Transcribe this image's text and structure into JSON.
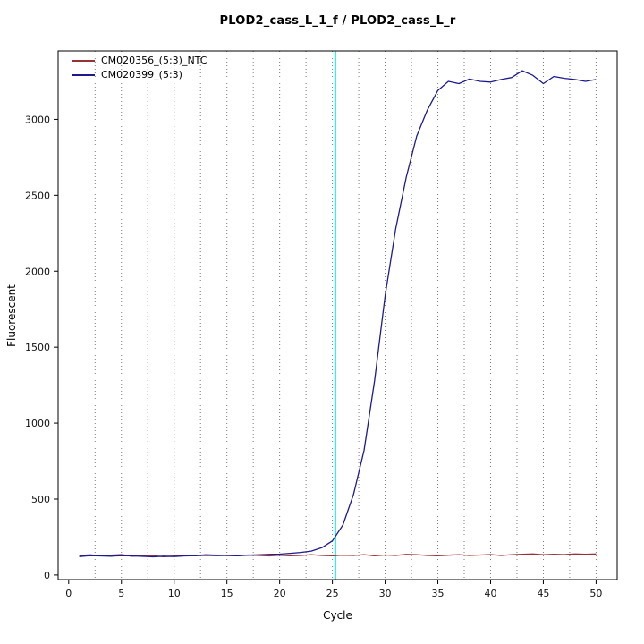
{
  "title": "PLOD2_cass_L_1_f / PLOD2_cass_L_r",
  "chart_data": {
    "type": "line",
    "title": "PLOD2_cass_L_1_f / PLOD2_cass_L_r",
    "xlabel": "Cycle",
    "ylabel": "Fluorescent",
    "xlim": [
      -1,
      52
    ],
    "ylim": [
      -30,
      3450
    ],
    "x_ticks": [
      0,
      5,
      10,
      15,
      20,
      25,
      30,
      35,
      40,
      45,
      50
    ],
    "y_ticks": [
      0,
      500,
      1000,
      1500,
      2000,
      2500,
      3000
    ],
    "grid": {
      "vertical_step": 2.5,
      "style": "dotted",
      "color": "#7a7a7a"
    },
    "threshold_line": {
      "x": 25.3,
      "color": "#00ffff"
    },
    "legend_position": "top-left",
    "x": [
      1,
      2,
      3,
      4,
      5,
      6,
      7,
      8,
      9,
      10,
      11,
      12,
      13,
      14,
      15,
      16,
      17,
      18,
      19,
      20,
      21,
      22,
      23,
      24,
      25,
      26,
      27,
      28,
      29,
      30,
      31,
      32,
      33,
      34,
      35,
      36,
      37,
      38,
      39,
      40,
      41,
      42,
      43,
      44,
      45,
      46,
      47,
      48,
      49,
      50
    ],
    "series": [
      {
        "name": "CM020356_(5:3)_NTC",
        "color": "#993333",
        "values": [
          128,
          133,
          127,
          131,
          135,
          124,
          129,
          127,
          121,
          125,
          130,
          127,
          134,
          131,
          129,
          127,
          132,
          129,
          126,
          131,
          127,
          129,
          134,
          129,
          127,
          131,
          129,
          134,
          127,
          132,
          129,
          136,
          134,
          129,
          127,
          131,
          134,
          129,
          132,
          135,
          129,
          134,
          137,
          139,
          134,
          137,
          135,
          139,
          137,
          139
        ]
      },
      {
        "name": "CM020399_(5:3)",
        "color": "#1b1b8f",
        "values": [
          122,
          128,
          126,
          124,
          128,
          126,
          123,
          120,
          124,
          122,
          126,
          128,
          130,
          128,
          129,
          127,
          131,
          133,
          136,
          138,
          143,
          149,
          158,
          180,
          225,
          330,
          530,
          820,
          1280,
          1840,
          2280,
          2620,
          2890,
          3060,
          3190,
          3250,
          3235,
          3265,
          3250,
          3245,
          3262,
          3275,
          3320,
          3290,
          3235,
          3282,
          3270,
          3262,
          3250,
          3262
        ]
      }
    ]
  }
}
